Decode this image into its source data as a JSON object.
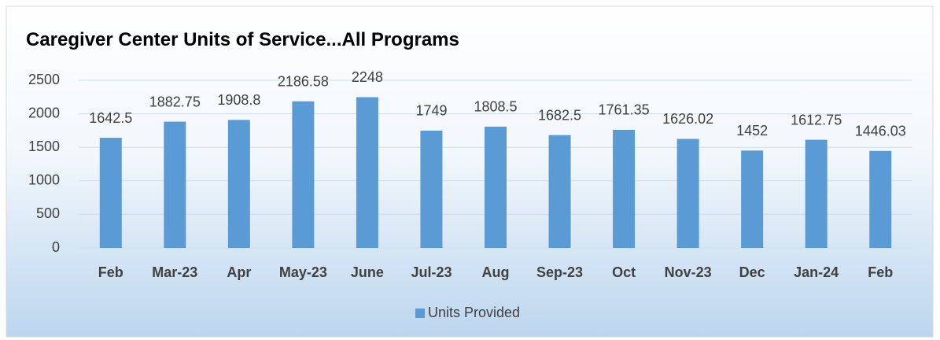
{
  "chart_data": {
    "type": "bar",
    "title": "Caregiver Center Units of Service...All Programs",
    "categories": [
      "Feb",
      "Mar-23",
      "Apr",
      "May-23",
      "June",
      "Jul-23",
      "Aug",
      "Sep-23",
      "Oct",
      "Nov-23",
      "Dec",
      "Jan-24",
      "Feb"
    ],
    "series": [
      {
        "name": "Units Provided",
        "color": "#5b9bd5",
        "values": [
          1642.5,
          1882.75,
          1908.8,
          2186.58,
          2248,
          1749,
          1808.5,
          1682.5,
          1761.35,
          1626.02,
          1452,
          1612.75,
          1446.03
        ]
      }
    ],
    "ylim": [
      0,
      2500
    ],
    "yticks": [
      0,
      500,
      1000,
      1500,
      2000,
      2500
    ],
    "grid": true,
    "legend": "bottom"
  }
}
